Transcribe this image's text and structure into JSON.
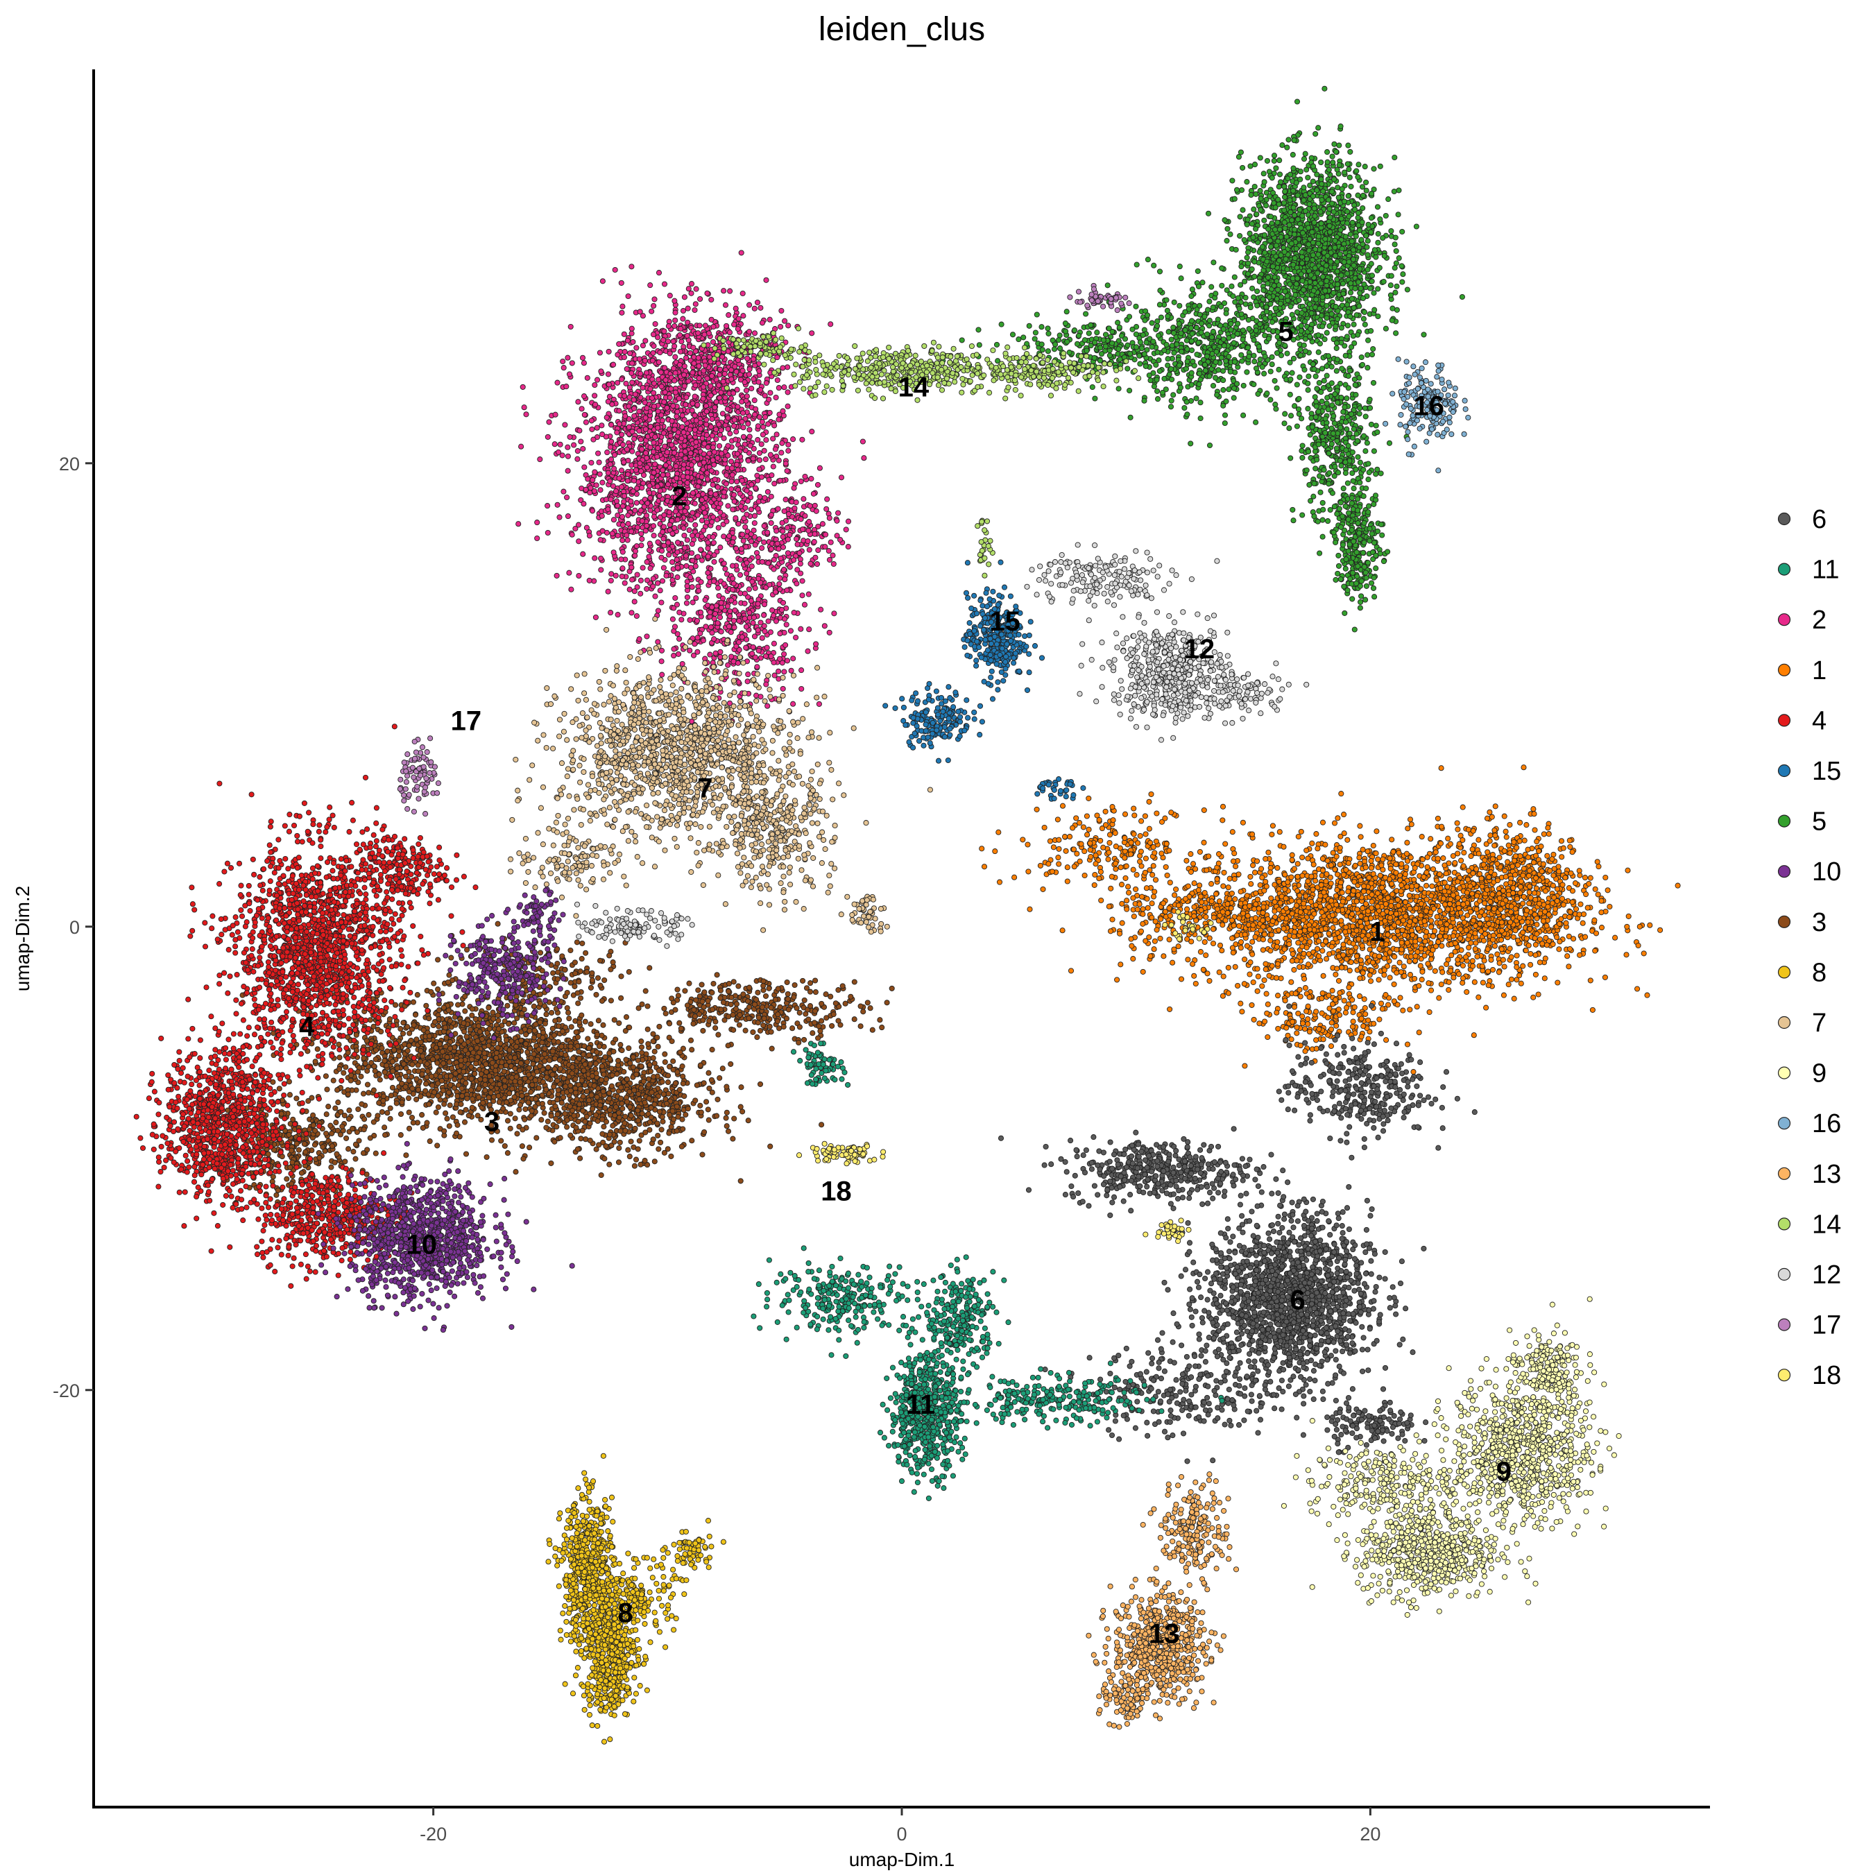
{
  "chart_data": {
    "type": "scatter",
    "title": "leiden_clus",
    "xlabel": "umap-Dim.1",
    "ylabel": "umap-Dim.2",
    "xlim": [
      -34.5,
      34.5
    ],
    "ylim": [
      -38.0,
      37.0
    ],
    "xticks": [
      {
        "value": -20,
        "label": "-20"
      },
      {
        "value": 0,
        "label": "0"
      },
      {
        "value": 20,
        "label": "20"
      }
    ],
    "yticks": [
      {
        "value": 20,
        "label": "20"
      },
      {
        "value": 0,
        "label": "0"
      },
      {
        "value": -20,
        "label": "-20"
      }
    ],
    "grid": false,
    "legend_position": "right",
    "legend": [
      {
        "label": "6",
        "color": "#5a5a5a"
      },
      {
        "label": "11",
        "color": "#1b9e77"
      },
      {
        "label": "2",
        "color": "#e7298a"
      },
      {
        "label": "1",
        "color": "#ff7f00"
      },
      {
        "label": "4",
        "color": "#e31a1c"
      },
      {
        "label": "15",
        "color": "#1f78b4"
      },
      {
        "label": "5",
        "color": "#33a02c"
      },
      {
        "label": "10",
        "color": "#7b3294"
      },
      {
        "label": "3",
        "color": "#8c4b1a"
      },
      {
        "label": "8",
        "color": "#f0c419"
      },
      {
        "label": "7",
        "color": "#e5c494"
      },
      {
        "label": "9",
        "color": "#ffffb3"
      },
      {
        "label": "16",
        "color": "#80b1d3"
      },
      {
        "label": "13",
        "color": "#fdb462"
      },
      {
        "label": "14",
        "color": "#b3de69"
      },
      {
        "label": "12",
        "color": "#d9d9d9"
      },
      {
        "label": "17",
        "color": "#bc80bd"
      },
      {
        "label": "18",
        "color": "#ffed6f"
      }
    ],
    "cluster_labels": [
      {
        "label": "1",
        "x": 20.3,
        "y": -0.2
      },
      {
        "label": "2",
        "x": -9.5,
        "y": 18.6
      },
      {
        "label": "3",
        "x": -17.5,
        "y": -8.4
      },
      {
        "label": "4",
        "x": -25.4,
        "y": -4.3
      },
      {
        "label": "5",
        "x": 16.4,
        "y": 25.7
      },
      {
        "label": "6",
        "x": 16.9,
        "y": -16.1
      },
      {
        "label": "7",
        "x": -8.4,
        "y": 6.0
      },
      {
        "label": "8",
        "x": -11.8,
        "y": -29.6
      },
      {
        "label": "9",
        "x": 25.7,
        "y": -23.5
      },
      {
        "label": "10",
        "x": -20.5,
        "y": -13.7
      },
      {
        "label": "11",
        "x": 0.8,
        "y": -20.6
      },
      {
        "label": "12",
        "x": 12.7,
        "y": 12.0
      },
      {
        "label": "13",
        "x": 11.2,
        "y": -30.5
      },
      {
        "label": "14",
        "x": 0.5,
        "y": 23.3
      },
      {
        "label": "15",
        "x": 4.4,
        "y": 13.2
      },
      {
        "label": "16",
        "x": 22.5,
        "y": 22.5
      },
      {
        "label": "17",
        "x": -18.6,
        "y": 8.9
      },
      {
        "label": "18",
        "x": -2.8,
        "y": -11.4
      }
    ],
    "clusters": [
      {
        "label": "1",
        "color": "#ff7f00",
        "blobs": [
          [
            20.5,
            0.5,
            8,
            3.2,
            2600
          ],
          [
            26,
            1.5,
            3,
            3,
            700
          ],
          [
            14,
            0.5,
            5,
            1.5,
            400
          ],
          [
            9,
            3.5,
            4,
            1.6,
            250
          ],
          [
            18,
            -4,
            3,
            1.5,
            200
          ]
        ]
      },
      {
        "label": "2",
        "color": "#e7298a",
        "blobs": [
          [
            -9.5,
            20,
            4.4,
            5.5,
            2600
          ],
          [
            -8,
            24.5,
            3,
            2.5,
            500
          ],
          [
            -7,
            13,
            3,
            3,
            500
          ],
          [
            -4.5,
            17,
            2,
            2,
            200
          ]
        ]
      },
      {
        "label": "3",
        "color": "#8c4b1a",
        "blobs": [
          [
            -18,
            -5.8,
            6,
            2.7,
            2200
          ],
          [
            -12,
            -7.5,
            4,
            2.3,
            900
          ],
          [
            -6,
            -3.5,
            4.5,
            1.2,
            400
          ],
          [
            -26,
            -9.5,
            3,
            2,
            400
          ],
          [
            -15,
            -2,
            4,
            1.5,
            200
          ]
        ]
      },
      {
        "label": "4",
        "color": "#e31a1c",
        "blobs": [
          [
            -25,
            -1,
            3.5,
            4.5,
            1900
          ],
          [
            -29,
            -8.5,
            2.5,
            3.2,
            1100
          ],
          [
            -24.5,
            -12.5,
            3,
            2,
            600
          ],
          [
            -21.5,
            2.5,
            2,
            1.6,
            250
          ]
        ]
      },
      {
        "label": "5",
        "color": "#33a02c",
        "blobs": [
          [
            17.5,
            29,
            3,
            4,
            2200
          ],
          [
            13,
            25,
            4,
            2.5,
            700
          ],
          [
            18.5,
            21,
            1.7,
            3.5,
            500
          ],
          [
            19.5,
            16.5,
            1,
            2.5,
            300
          ],
          [
            8,
            25,
            4,
            1.2,
            250
          ]
        ]
      },
      {
        "label": "6",
        "color": "#5a5a5a",
        "blobs": [
          [
            16.5,
            -16,
            3.5,
            3.5,
            1900
          ],
          [
            11,
            -10.5,
            4,
            1.3,
            500
          ],
          [
            19.5,
            -7,
            3,
            2,
            400
          ],
          [
            12,
            -20,
            4,
            2,
            300
          ],
          [
            20,
            -21.5,
            2,
            1,
            150
          ]
        ]
      },
      {
        "label": "7",
        "color": "#e5c494",
        "blobs": [
          [
            -9.5,
            7.5,
            5,
            3.5,
            1600
          ],
          [
            -5.5,
            4,
            2.5,
            2.5,
            400
          ],
          [
            -14,
            3,
            2.5,
            1.5,
            150
          ],
          [
            -1.5,
            0.5,
            0.8,
            1,
            60
          ]
        ]
      },
      {
        "label": "8",
        "color": "#f0c419",
        "blobs": [
          [
            -13.4,
            -27.8,
            1.1,
            3,
            700
          ],
          [
            -12.5,
            -31.5,
            1.2,
            2.5,
            600
          ],
          [
            -11.2,
            -29,
            1.5,
            1.5,
            200
          ],
          [
            -9,
            -27,
            1,
            1,
            80
          ]
        ]
      },
      {
        "label": "9",
        "color": "#ffffb3",
        "blobs": [
          [
            26.5,
            -22.5,
            3,
            3,
            1000
          ],
          [
            22.5,
            -27,
            3,
            2,
            700
          ],
          [
            20.5,
            -24,
            3,
            1.5,
            300
          ],
          [
            27.5,
            -19,
            1.5,
            1.5,
            200
          ]
        ]
      },
      {
        "label": "10",
        "color": "#7b3294",
        "blobs": [
          [
            -20.5,
            -13.5,
            3,
            2.5,
            1200
          ],
          [
            -17,
            -2,
            2,
            2,
            350
          ],
          [
            -15.5,
            0.5,
            1,
            1,
            80
          ]
        ]
      },
      {
        "label": "11",
        "color": "#1b9e77",
        "blobs": [
          [
            1,
            -21,
            1.5,
            2.5,
            700
          ],
          [
            -2.5,
            -16,
            3,
            1.5,
            300
          ],
          [
            2.5,
            -17,
            1.5,
            2,
            300
          ],
          [
            6.5,
            -20.5,
            4,
            1,
            300
          ],
          [
            -3.5,
            -6,
            1,
            0.8,
            80
          ]
        ]
      },
      {
        "label": "12",
        "color": "#d9d9d9",
        "blobs": [
          [
            11.5,
            11,
            2.5,
            2,
            600
          ],
          [
            8.5,
            15,
            3,
            1.3,
            200
          ],
          [
            -11.5,
            0,
            2,
            0.6,
            150
          ],
          [
            14.5,
            10,
            2,
            1,
            100
          ]
        ]
      },
      {
        "label": "13",
        "color": "#fdb462",
        "blobs": [
          [
            11,
            -31,
            2,
            2.2,
            700
          ],
          [
            12.5,
            -26,
            1.5,
            2,
            250
          ],
          [
            9.5,
            -33.5,
            1,
            1,
            100
          ]
        ]
      },
      {
        "label": "14",
        "color": "#b3de69",
        "blobs": [
          [
            0,
            24,
            4.5,
            1,
            500
          ],
          [
            6,
            24,
            3,
            0.8,
            200
          ],
          [
            -6,
            25,
            2,
            0.6,
            100
          ],
          [
            3.5,
            16.5,
            0.3,
            1.2,
            30
          ]
        ]
      },
      {
        "label": "15",
        "color": "#1f78b4",
        "blobs": [
          [
            4,
            12.5,
            1.2,
            1.8,
            400
          ],
          [
            1.5,
            9,
            1.5,
            1.2,
            200
          ],
          [
            6.5,
            6,
            1,
            0.5,
            40
          ]
        ]
      },
      {
        "label": "16",
        "color": "#80b1d3",
        "blobs": [
          [
            22.5,
            22.5,
            1.3,
            1.8,
            200
          ]
        ]
      },
      {
        "label": "17",
        "color": "#bc80bd",
        "blobs": [
          [
            -20.5,
            6.5,
            0.9,
            1.2,
            100
          ],
          [
            8.5,
            27,
            1.5,
            0.4,
            60
          ]
        ]
      },
      {
        "label": "18",
        "color": "#ffed6f",
        "blobs": [
          [
            -2.5,
            -9.8,
            1.5,
            0.4,
            100
          ],
          [
            11.5,
            -13,
            0.8,
            0.5,
            50
          ],
          [
            12,
            0,
            0.8,
            0.5,
            30
          ]
        ]
      }
    ]
  }
}
